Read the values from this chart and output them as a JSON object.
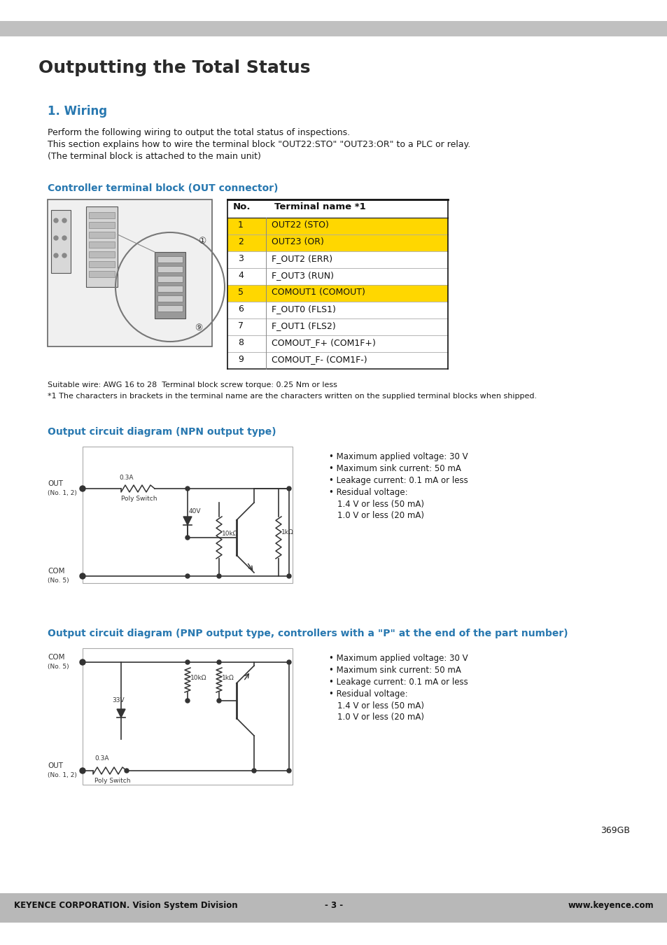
{
  "title": "Outputting the Total Status",
  "section1_title": "1. Wiring",
  "section1_color": "#2878b0",
  "body_text_color": "#1a1a1a",
  "bg_color": "#ffffff",
  "header_bar_color": "#c0c0c0",
  "footer_bar_color": "#b8b8b8",
  "wiring_text1": "Perform the following wiring to output the total status of inspections.",
  "wiring_text2": "This section explains how to wire the terminal block \"OUT22:STO\" \"OUT23:OR\" to a PLC or relay.",
  "wiring_text3": "(The terminal block is attached to the main unit)",
  "connector_title": "Controller terminal block (OUT connector)",
  "table_header": [
    "No.",
    "Terminal name *1"
  ],
  "table_rows": [
    [
      "1",
      "OUT22 (STO)",
      true
    ],
    [
      "2",
      "OUT23 (OR)",
      true
    ],
    [
      "3",
      "F_OUT2 (ERR)",
      false
    ],
    [
      "4",
      "F_OUT3 (RUN)",
      false
    ],
    [
      "5",
      "COMOUT1 (COMOUT)",
      true
    ],
    [
      "6",
      "F_OUT0 (FLS1)",
      false
    ],
    [
      "7",
      "F_OUT1 (FLS2)",
      false
    ],
    [
      "8",
      "COMOUT_F+ (COM1F+)",
      false
    ],
    [
      "9",
      "COMOUT_F- (COM1F-)",
      false
    ]
  ],
  "yellow_color": "#FFD700",
  "note1": "Suitable wire: AWG 16 to 28  Terminal block screw torque: 0.25 Nm or less",
  "note2": "*1 The characters in brackets in the terminal name are the characters written on the supplied terminal blocks when shipped.",
  "npn_title": "Output circuit diagram (NPN output type)",
  "pnp_title": "Output circuit diagram (PNP output type, controllers with a \"P\" at the end of the part number)",
  "bullet_points_npn": [
    "Maximum applied voltage: 30 V",
    "Maximum sink current: 50 mA",
    "Leakage current: 0.1 mA or less",
    "Residual voltage:",
    "1.4 V or less (50 mA)",
    "1.0 V or less (20 mA)"
  ],
  "bullet_points_pnp": [
    "Maximum applied voltage: 30 V",
    "Maximum sink current: 50 mA",
    "Leakage current: 0.1 mA or less",
    "Residual voltage:",
    "1.4 V or less (50 mA)",
    "1.0 V or less (20 mA)"
  ],
  "page_number": "369GB",
  "footer_left": "KEYENCE CORPORATION. Vision System Division",
  "footer_center": "- 3 -",
  "footer_right": "www.keyence.com"
}
